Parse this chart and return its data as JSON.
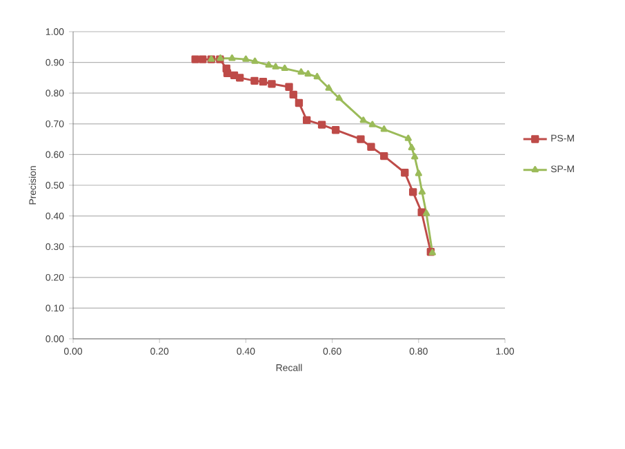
{
  "chart_data": {
    "type": "line",
    "xlabel": "Recall",
    "ylabel": "Precision",
    "series": [
      {
        "name": "PS-M",
        "color": "#be4b48",
        "marker": "square",
        "x": [
          0.283,
          0.3,
          0.32,
          0.34,
          0.355,
          0.357,
          0.373,
          0.386,
          0.42,
          0.44,
          0.46,
          0.5,
          0.51,
          0.523,
          0.541,
          0.576,
          0.608,
          0.666,
          0.69,
          0.72,
          0.768,
          0.787,
          0.807,
          0.828
        ],
        "values": [
          0.91,
          0.91,
          0.91,
          0.91,
          0.88,
          0.865,
          0.858,
          0.85,
          0.84,
          0.837,
          0.83,
          0.82,
          0.795,
          0.768,
          0.712,
          0.697,
          0.68,
          0.65,
          0.625,
          0.595,
          0.541,
          0.478,
          0.412,
          0.283
        ]
      },
      {
        "name": "SP-M",
        "color": "#9bbb59",
        "marker": "triangle",
        "x": [
          0.32,
          0.341,
          0.368,
          0.4,
          0.421,
          0.453,
          0.469,
          0.49,
          0.528,
          0.544,
          0.565,
          0.592,
          0.616,
          0.672,
          0.693,
          0.72,
          0.776,
          0.784,
          0.791,
          0.8,
          0.808,
          0.818,
          0.832
        ],
        "values": [
          0.91,
          0.913,
          0.913,
          0.91,
          0.903,
          0.891,
          0.885,
          0.88,
          0.868,
          0.862,
          0.853,
          0.816,
          0.783,
          0.711,
          0.697,
          0.682,
          0.652,
          0.622,
          0.592,
          0.538,
          0.478,
          0.408,
          0.28
        ]
      }
    ],
    "xlim": [
      0,
      1
    ],
    "ylim": [
      0,
      1
    ],
    "xticks": [
      {
        "value": 0,
        "label": "0.00"
      },
      {
        "value": 0.2,
        "label": "0.20"
      },
      {
        "value": 0.4,
        "label": "0.40"
      },
      {
        "value": 0.6,
        "label": "0.60"
      },
      {
        "value": 0.8,
        "label": "0.80"
      },
      {
        "value": 1,
        "label": "1.00"
      }
    ],
    "yticks": [
      {
        "value": 0,
        "label": "0.00"
      },
      {
        "value": 0.1,
        "label": "0.10"
      },
      {
        "value": 0.2,
        "label": "0.20"
      },
      {
        "value": 0.3,
        "label": "0.30"
      },
      {
        "value": 0.4,
        "label": "0.40"
      },
      {
        "value": 0.5,
        "label": "0.50"
      },
      {
        "value": 0.6,
        "label": "0.60"
      },
      {
        "value": 0.7,
        "label": "0.70"
      },
      {
        "value": 0.8,
        "label": "0.80"
      },
      {
        "value": 0.9,
        "label": "0.90"
      },
      {
        "value": 1,
        "label": "1.00"
      }
    ],
    "grid": "y",
    "legend": "right",
    "line_style": "solid"
  }
}
